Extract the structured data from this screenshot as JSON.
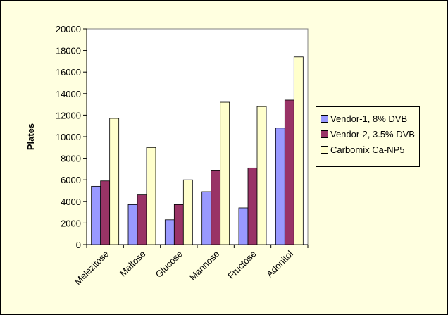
{
  "chart_data": {
    "type": "bar",
    "title": "",
    "xlabel": "",
    "ylabel": "Plates",
    "ylim": [
      0,
      20000
    ],
    "yticks": [
      0,
      2000,
      4000,
      6000,
      8000,
      10000,
      12000,
      14000,
      16000,
      18000,
      20000
    ],
    "grid": false,
    "legend_position": "right",
    "categories": [
      "Melezitose",
      "Maltose",
      "Glucose",
      "Mannose",
      "Fructose",
      "Adonitol"
    ],
    "series": [
      {
        "name": "Vendor-1, 8% DVB",
        "color": "#9999ff",
        "values": [
          5400,
          3700,
          2300,
          4900,
          3400,
          10800
        ]
      },
      {
        "name": "Vendor-2, 3.5% DVB",
        "color": "#993366",
        "values": [
          5900,
          4600,
          3700,
          6900,
          7100,
          13400
        ]
      },
      {
        "name": "Carbomix Ca-NP5",
        "color": "#ffffcc",
        "values": [
          11700,
          9000,
          6000,
          13200,
          12800,
          17400
        ]
      }
    ]
  }
}
